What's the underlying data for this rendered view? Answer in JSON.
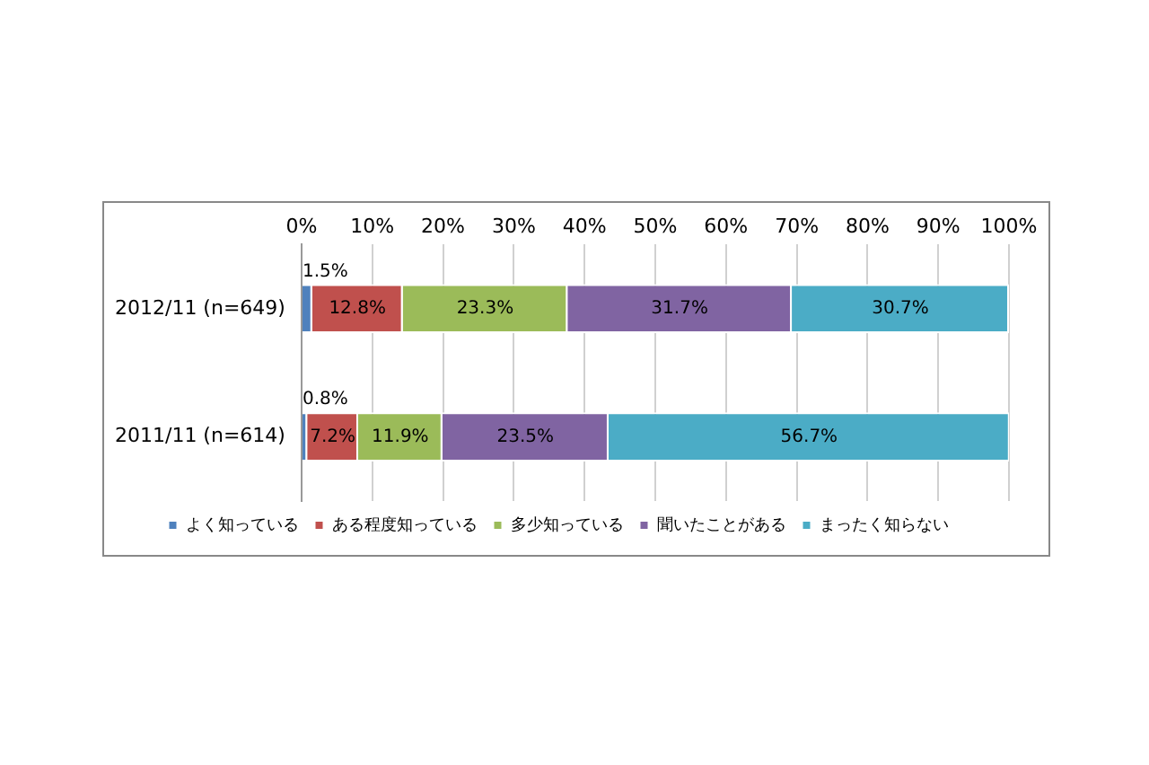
{
  "chart_data": {
    "type": "bar",
    "orientation": "horizontal",
    "stacked": true,
    "categories": [
      "2012/11 (n=649)",
      "2011/11 (n=614)"
    ],
    "series": [
      {
        "name": "よく知っている",
        "color": "#4f81bd",
        "values": [
          1.5,
          0.8
        ],
        "value_labels": [
          "1.5%",
          "0.8%"
        ]
      },
      {
        "name": "ある程度知っている",
        "color": "#c0504d",
        "values": [
          12.8,
          7.2
        ],
        "value_labels": [
          "12.8%",
          "7.2%"
        ]
      },
      {
        "name": "多少知っている",
        "color": "#9bbb59",
        "values": [
          23.3,
          11.9
        ],
        "value_labels": [
          "23.3%",
          "11.9%"
        ]
      },
      {
        "name": "聞いたことがある",
        "color": "#8064a2",
        "values": [
          31.7,
          23.5
        ],
        "value_labels": [
          "31.7%",
          "23.5%"
        ]
      },
      {
        "name": "まったく知らない",
        "color": "#4bacc6",
        "values": [
          30.7,
          56.7
        ],
        "value_labels": [
          "30.7%",
          "56.7%"
        ]
      }
    ],
    "xlim": [
      0,
      100
    ],
    "xticks": [
      {
        "value": 0,
        "label": "0%"
      },
      {
        "value": 10,
        "label": "10%"
      },
      {
        "value": 20,
        "label": "20%"
      },
      {
        "value": 30,
        "label": "30%"
      },
      {
        "value": 40,
        "label": "40%"
      },
      {
        "value": 50,
        "label": "50%"
      },
      {
        "value": 60,
        "label": "60%"
      },
      {
        "value": 70,
        "label": "70%"
      },
      {
        "value": 80,
        "label": "80%"
      },
      {
        "value": 90,
        "label": "90%"
      },
      {
        "value": 100,
        "label": "100%"
      }
    ],
    "grid": "x",
    "legend": "bottom"
  }
}
